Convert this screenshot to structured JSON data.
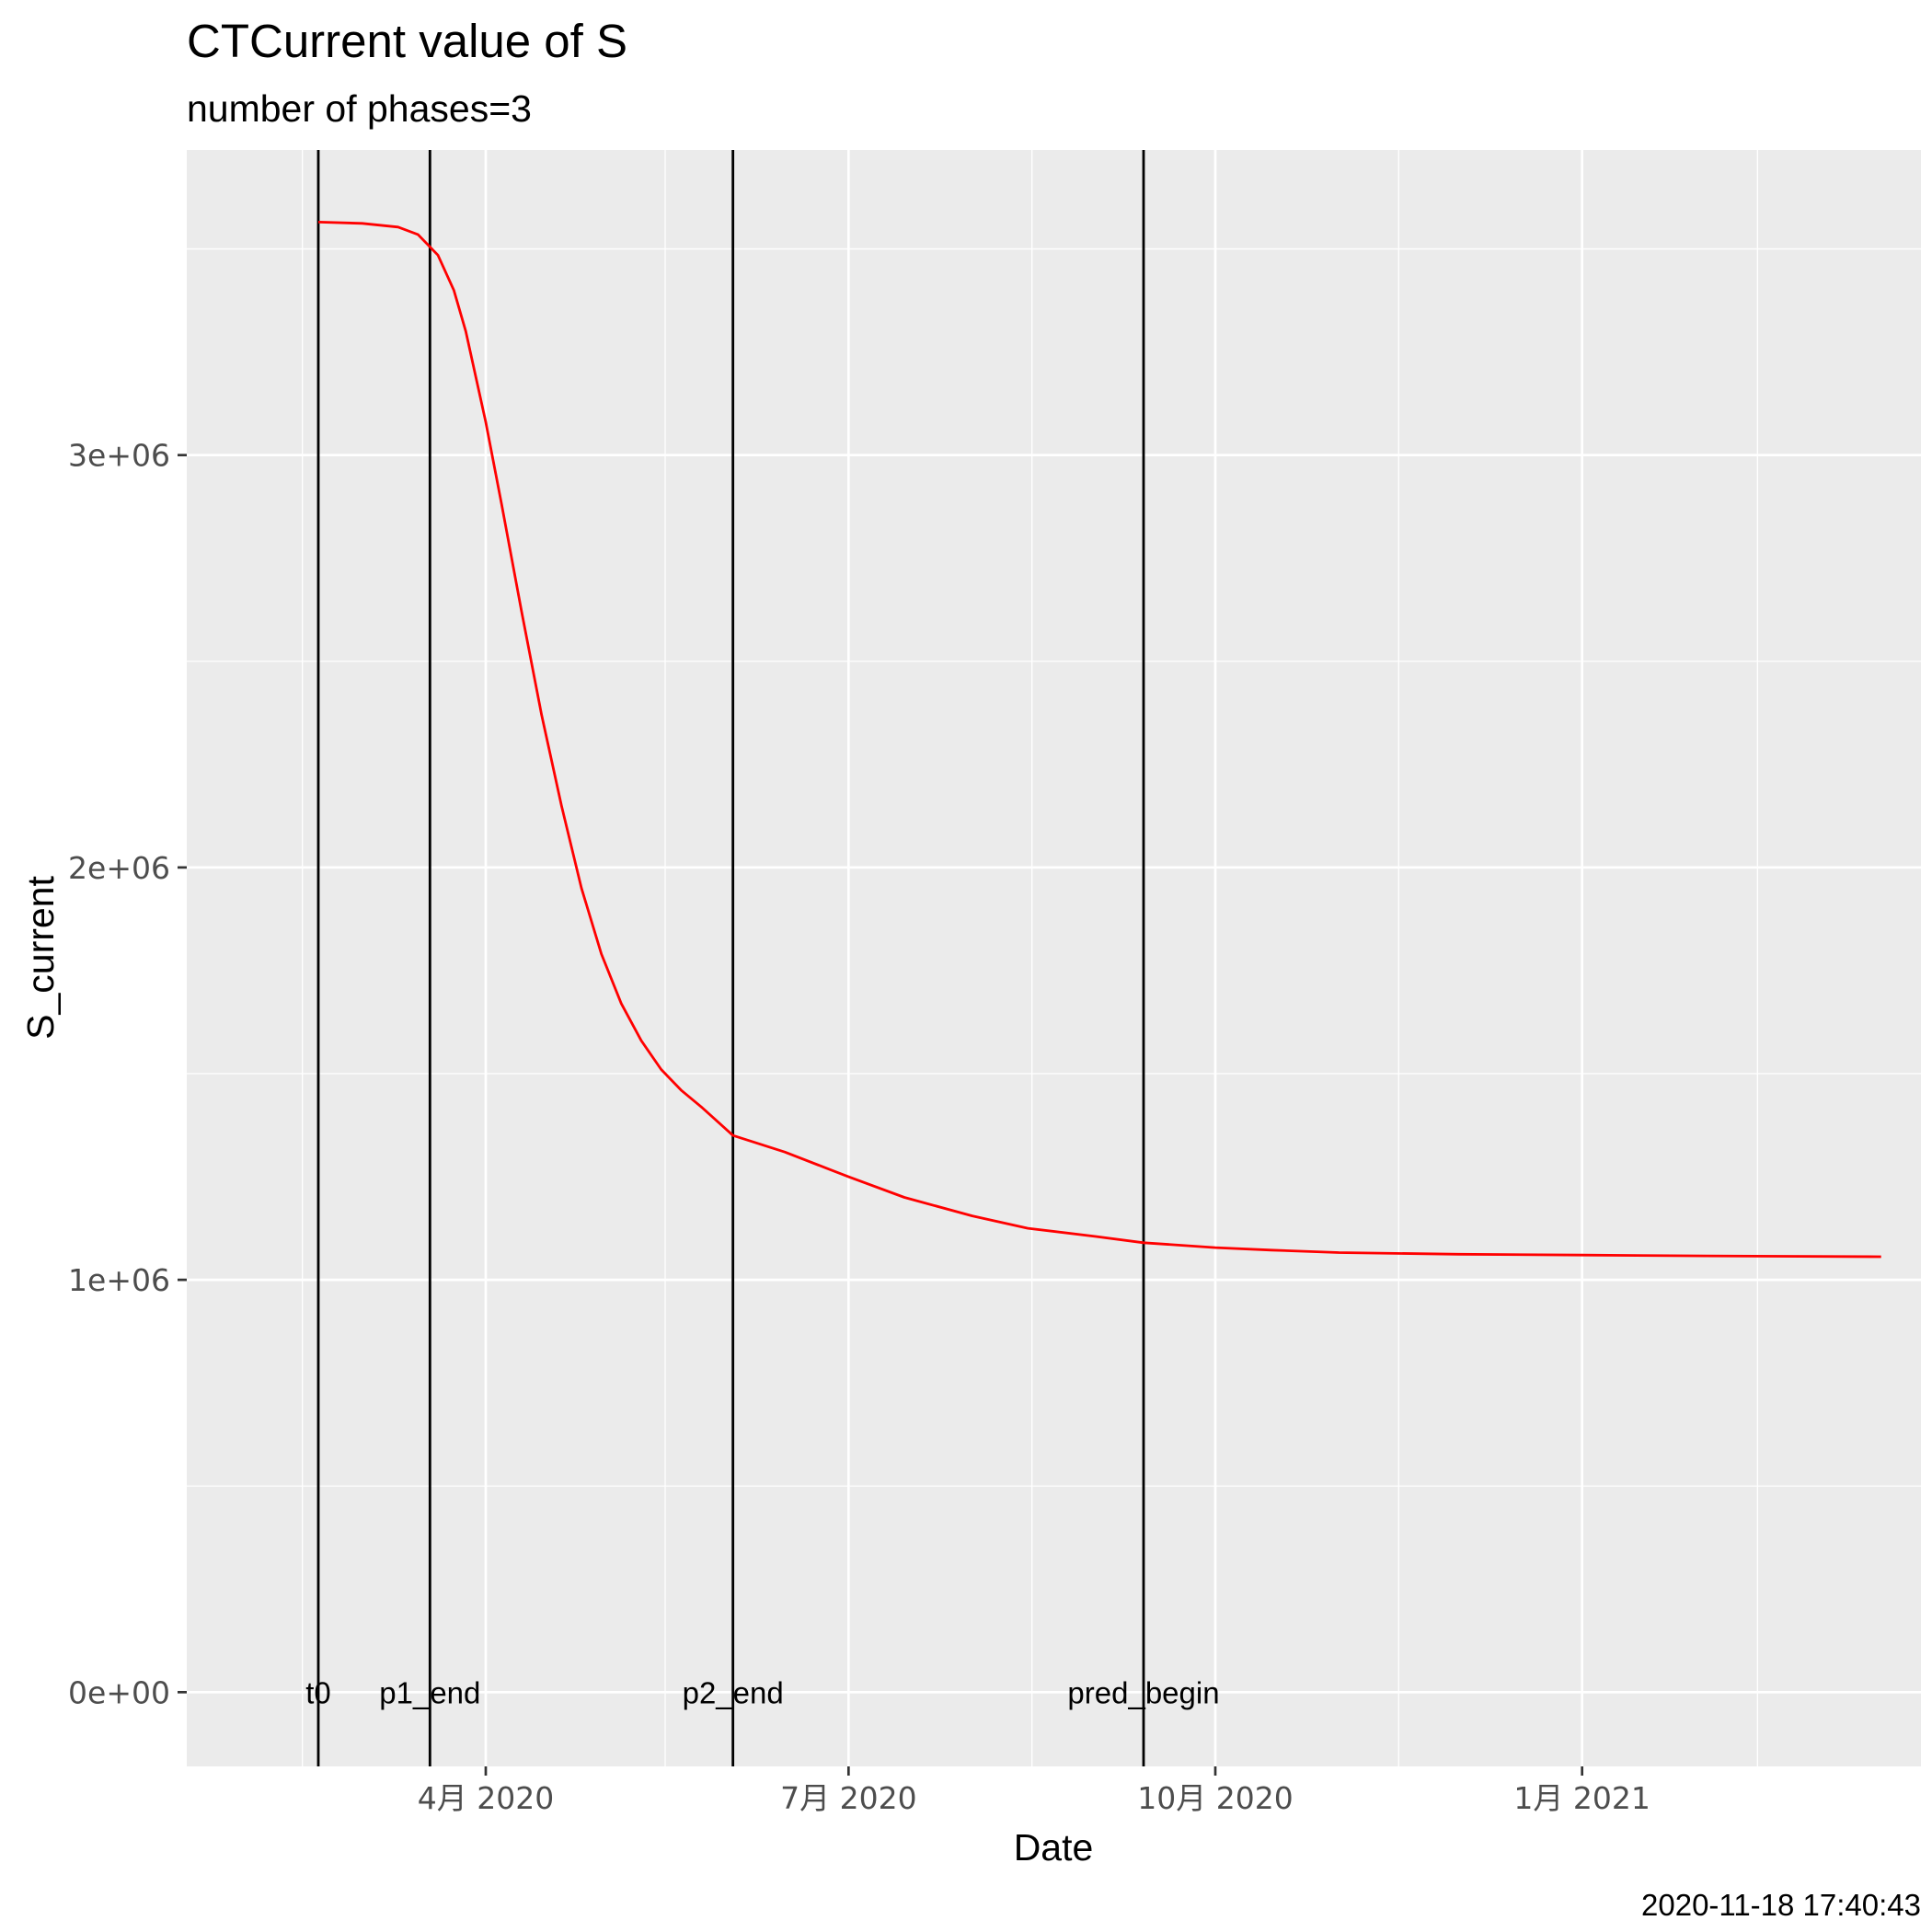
{
  "chart_data": {
    "type": "line",
    "title": "CTCurrent value of S",
    "subtitle": "number of phases=3",
    "xlabel": "Date",
    "ylabel": "S_current",
    "caption": "2020-11-18 17:40:43",
    "xlim": [
      "2020-01-17",
      "2021-03-27"
    ],
    "ylim": [
      -180000,
      3740000
    ],
    "grid": true,
    "x_ticks": [
      {
        "date": "2020-04-01",
        "label": "4月 2020"
      },
      {
        "date": "2020-07-01",
        "label": "7月 2020"
      },
      {
        "date": "2020-10-01",
        "label": "10月 2020"
      },
      {
        "date": "2021-01-01",
        "label": "1月 2021"
      }
    ],
    "x_minor_ticks": [
      "2020-02-15",
      "2020-05-16",
      "2020-08-16",
      "2020-11-16",
      "2021-02-14"
    ],
    "y_ticks": [
      {
        "value": 0,
        "label": "0e+00"
      },
      {
        "value": 1000000,
        "label": "1e+06"
      },
      {
        "value": 2000000,
        "label": "2e+06"
      },
      {
        "value": 3000000,
        "label": "3e+06"
      }
    ],
    "y_minor_ticks": [
      500000,
      1500000,
      2500000,
      3500000
    ],
    "phase_lines": [
      {
        "date": "2020-02-19",
        "label": "t0"
      },
      {
        "date": "2020-03-18",
        "label": "p1_end"
      },
      {
        "date": "2020-06-02",
        "label": "p2_end"
      },
      {
        "date": "2020-09-13",
        "label": "pred_begin"
      }
    ],
    "series": [
      {
        "color": "#ff0000",
        "points": [
          [
            "2020-02-19",
            3565000
          ],
          [
            "2020-03-01",
            3562000
          ],
          [
            "2020-03-10",
            3553000
          ],
          [
            "2020-03-15",
            3535000
          ],
          [
            "2020-03-20",
            3485000
          ],
          [
            "2020-03-24",
            3400000
          ],
          [
            "2020-03-27",
            3300000
          ],
          [
            "2020-04-01",
            3080000
          ],
          [
            "2020-04-05",
            2880000
          ],
          [
            "2020-04-10",
            2620000
          ],
          [
            "2020-04-15",
            2370000
          ],
          [
            "2020-04-20",
            2150000
          ],
          [
            "2020-04-25",
            1950000
          ],
          [
            "2020-04-30",
            1790000
          ],
          [
            "2020-05-05",
            1670000
          ],
          [
            "2020-05-10",
            1580000
          ],
          [
            "2020-05-15",
            1510000
          ],
          [
            "2020-05-20",
            1460000
          ],
          [
            "2020-05-25",
            1420000
          ],
          [
            "2020-06-02",
            1350000
          ],
          [
            "2020-06-15",
            1310000
          ],
          [
            "2020-07-01",
            1250000
          ],
          [
            "2020-07-15",
            1200000
          ],
          [
            "2020-08-01",
            1155000
          ],
          [
            "2020-08-15",
            1125000
          ],
          [
            "2020-09-01",
            1105000
          ],
          [
            "2020-09-13",
            1090000
          ],
          [
            "2020-10-01",
            1078000
          ],
          [
            "2020-10-15",
            1072000
          ],
          [
            "2020-11-01",
            1066000
          ],
          [
            "2020-12-01",
            1062000
          ],
          [
            "2021-01-01",
            1060000
          ],
          [
            "2021-02-01",
            1058000
          ],
          [
            "2021-03-17",
            1056000
          ]
        ]
      }
    ],
    "panel_background": "#ebebeb",
    "grid_color": "#ffffff",
    "phase_line_color": "#000000"
  }
}
